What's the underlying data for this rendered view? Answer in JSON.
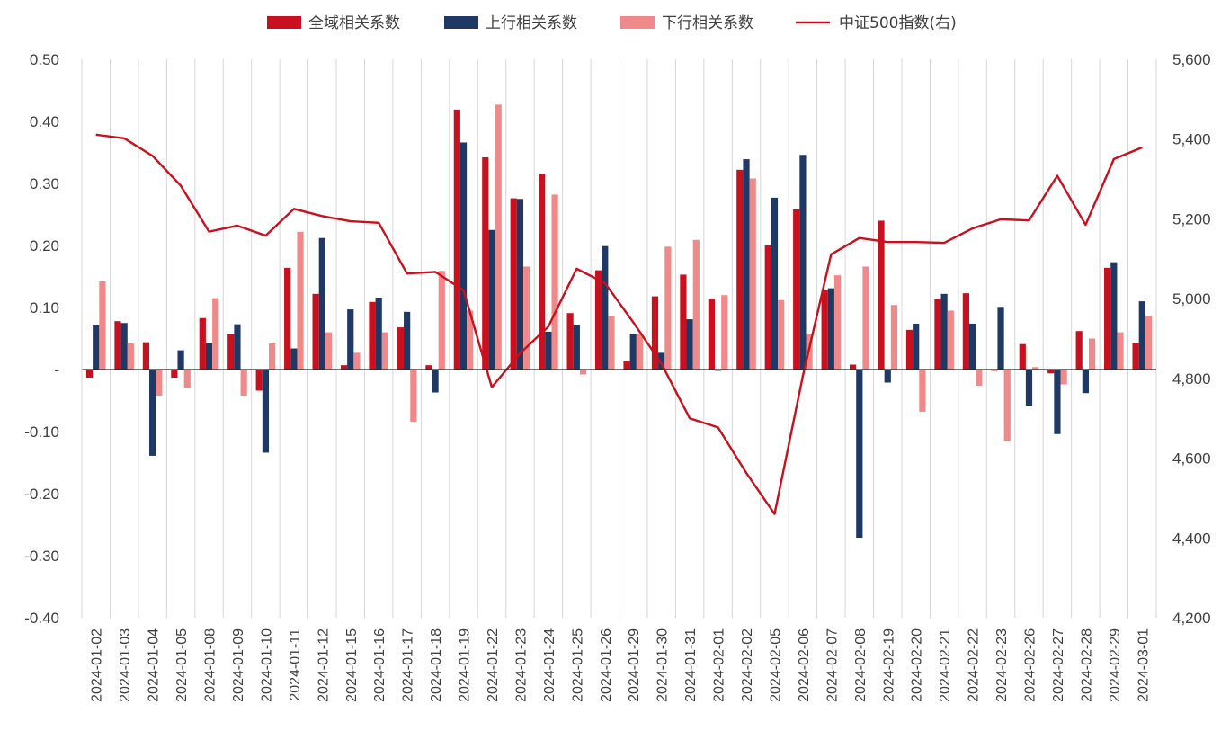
{
  "chart_data": {
    "type": "bar",
    "categories": [
      "2024-01-02",
      "2024-01-03",
      "2024-01-04",
      "2024-01-05",
      "2024-01-08",
      "2024-01-09",
      "2024-01-10",
      "2024-01-11",
      "2024-01-12",
      "2024-01-15",
      "2024-01-16",
      "2024-01-17",
      "2024-01-18",
      "2024-01-19",
      "2024-01-22",
      "2024-01-23",
      "2024-01-24",
      "2024-01-25",
      "2024-01-26",
      "2024-01-29",
      "2024-01-30",
      "2024-01-31",
      "2024-02-01",
      "2024-02-02",
      "2024-02-05",
      "2024-02-06",
      "2024-02-07",
      "2024-02-08",
      "2024-02-19",
      "2024-02-20",
      "2024-02-21",
      "2024-02-22",
      "2024-02-23",
      "2024-02-26",
      "2024-02-27",
      "2024-02-28",
      "2024-02-29",
      "2024-03-01"
    ],
    "series": [
      {
        "name": "全域相关系数",
        "type": "bar",
        "axis": "left",
        "color": "#C8101E",
        "values": [
          -0.013,
          0.078,
          0.044,
          -0.013,
          0.083,
          0.057,
          -0.034,
          0.164,
          0.122,
          0.007,
          0.109,
          0.068,
          0.007,
          0.419,
          0.342,
          0.276,
          0.316,
          0.091,
          0.16,
          0.014,
          0.118,
          0.153,
          0.114,
          0.322,
          0.2,
          0.258,
          0.128,
          0.008,
          0.24,
          0.064,
          0.114,
          0.123,
          -0.002,
          0.041,
          -0.006,
          0.062,
          0.164,
          0.043
        ]
      },
      {
        "name": "上行相关系数",
        "type": "bar",
        "axis": "left",
        "color": "#1F3864",
        "values": [
          0.071,
          0.075,
          -0.139,
          0.031,
          0.043,
          0.073,
          -0.134,
          0.034,
          0.212,
          0.097,
          0.116,
          0.093,
          -0.037,
          0.366,
          0.225,
          0.275,
          0.061,
          0.071,
          0.199,
          0.058,
          0.027,
          0.081,
          -0.002,
          0.339,
          0.277,
          0.346,
          0.131,
          -0.271,
          -0.021,
          0.074,
          0.122,
          0.074,
          0.101,
          -0.058,
          -0.104,
          -0.038,
          0.173,
          0.11
        ]
      },
      {
        "name": "下行相关系数",
        "type": "bar",
        "axis": "left",
        "color": "#F08A8A",
        "values": [
          0.142,
          0.042,
          -0.042,
          -0.029,
          0.115,
          -0.042,
          0.042,
          0.222,
          0.06,
          0.027,
          0.06,
          -0.084,
          0.159,
          0.095,
          0.427,
          0.166,
          0.282,
          -0.008,
          0.086,
          0.058,
          0.198,
          0.209,
          0.12,
          0.308,
          0.112,
          0.057,
          0.152,
          0.166,
          0.104,
          -0.068,
          0.095,
          -0.026,
          -0.115,
          0.004,
          -0.024,
          0.05,
          0.06,
          0.087
        ]
      },
      {
        "name": "中证500指数(右)",
        "type": "line",
        "axis": "right",
        "color": "#C8101E",
        "values": [
          5411,
          5402,
          5358,
          5283,
          5168,
          5183,
          5158,
          5225,
          5207,
          5194,
          5190,
          5063,
          5067,
          5021,
          4778,
          4863,
          4930,
          5075,
          5039,
          4941,
          4837,
          4700,
          4677,
          4563,
          4460,
          4806,
          5111,
          5152,
          5142,
          5142,
          5140,
          5176,
          5199,
          5196,
          5308,
          5185,
          5350,
          5379
        ]
      }
    ],
    "y_left": {
      "min": -0.4,
      "max": 0.5,
      "ticks": [
        "0.50",
        "0.40",
        "0.30",
        "0.20",
        "0.10",
        "-",
        "-0.10",
        "-0.20",
        "-0.30",
        "-0.40"
      ]
    },
    "y_right": {
      "min": 4200,
      "max": 5600,
      "ticks": [
        "5,600",
        "5,400",
        "5,200",
        "5,000",
        "4,800",
        "4,600",
        "4,400",
        "4,200"
      ]
    },
    "legend": {
      "position": "top"
    },
    "grid": "vertical-category-lines"
  }
}
